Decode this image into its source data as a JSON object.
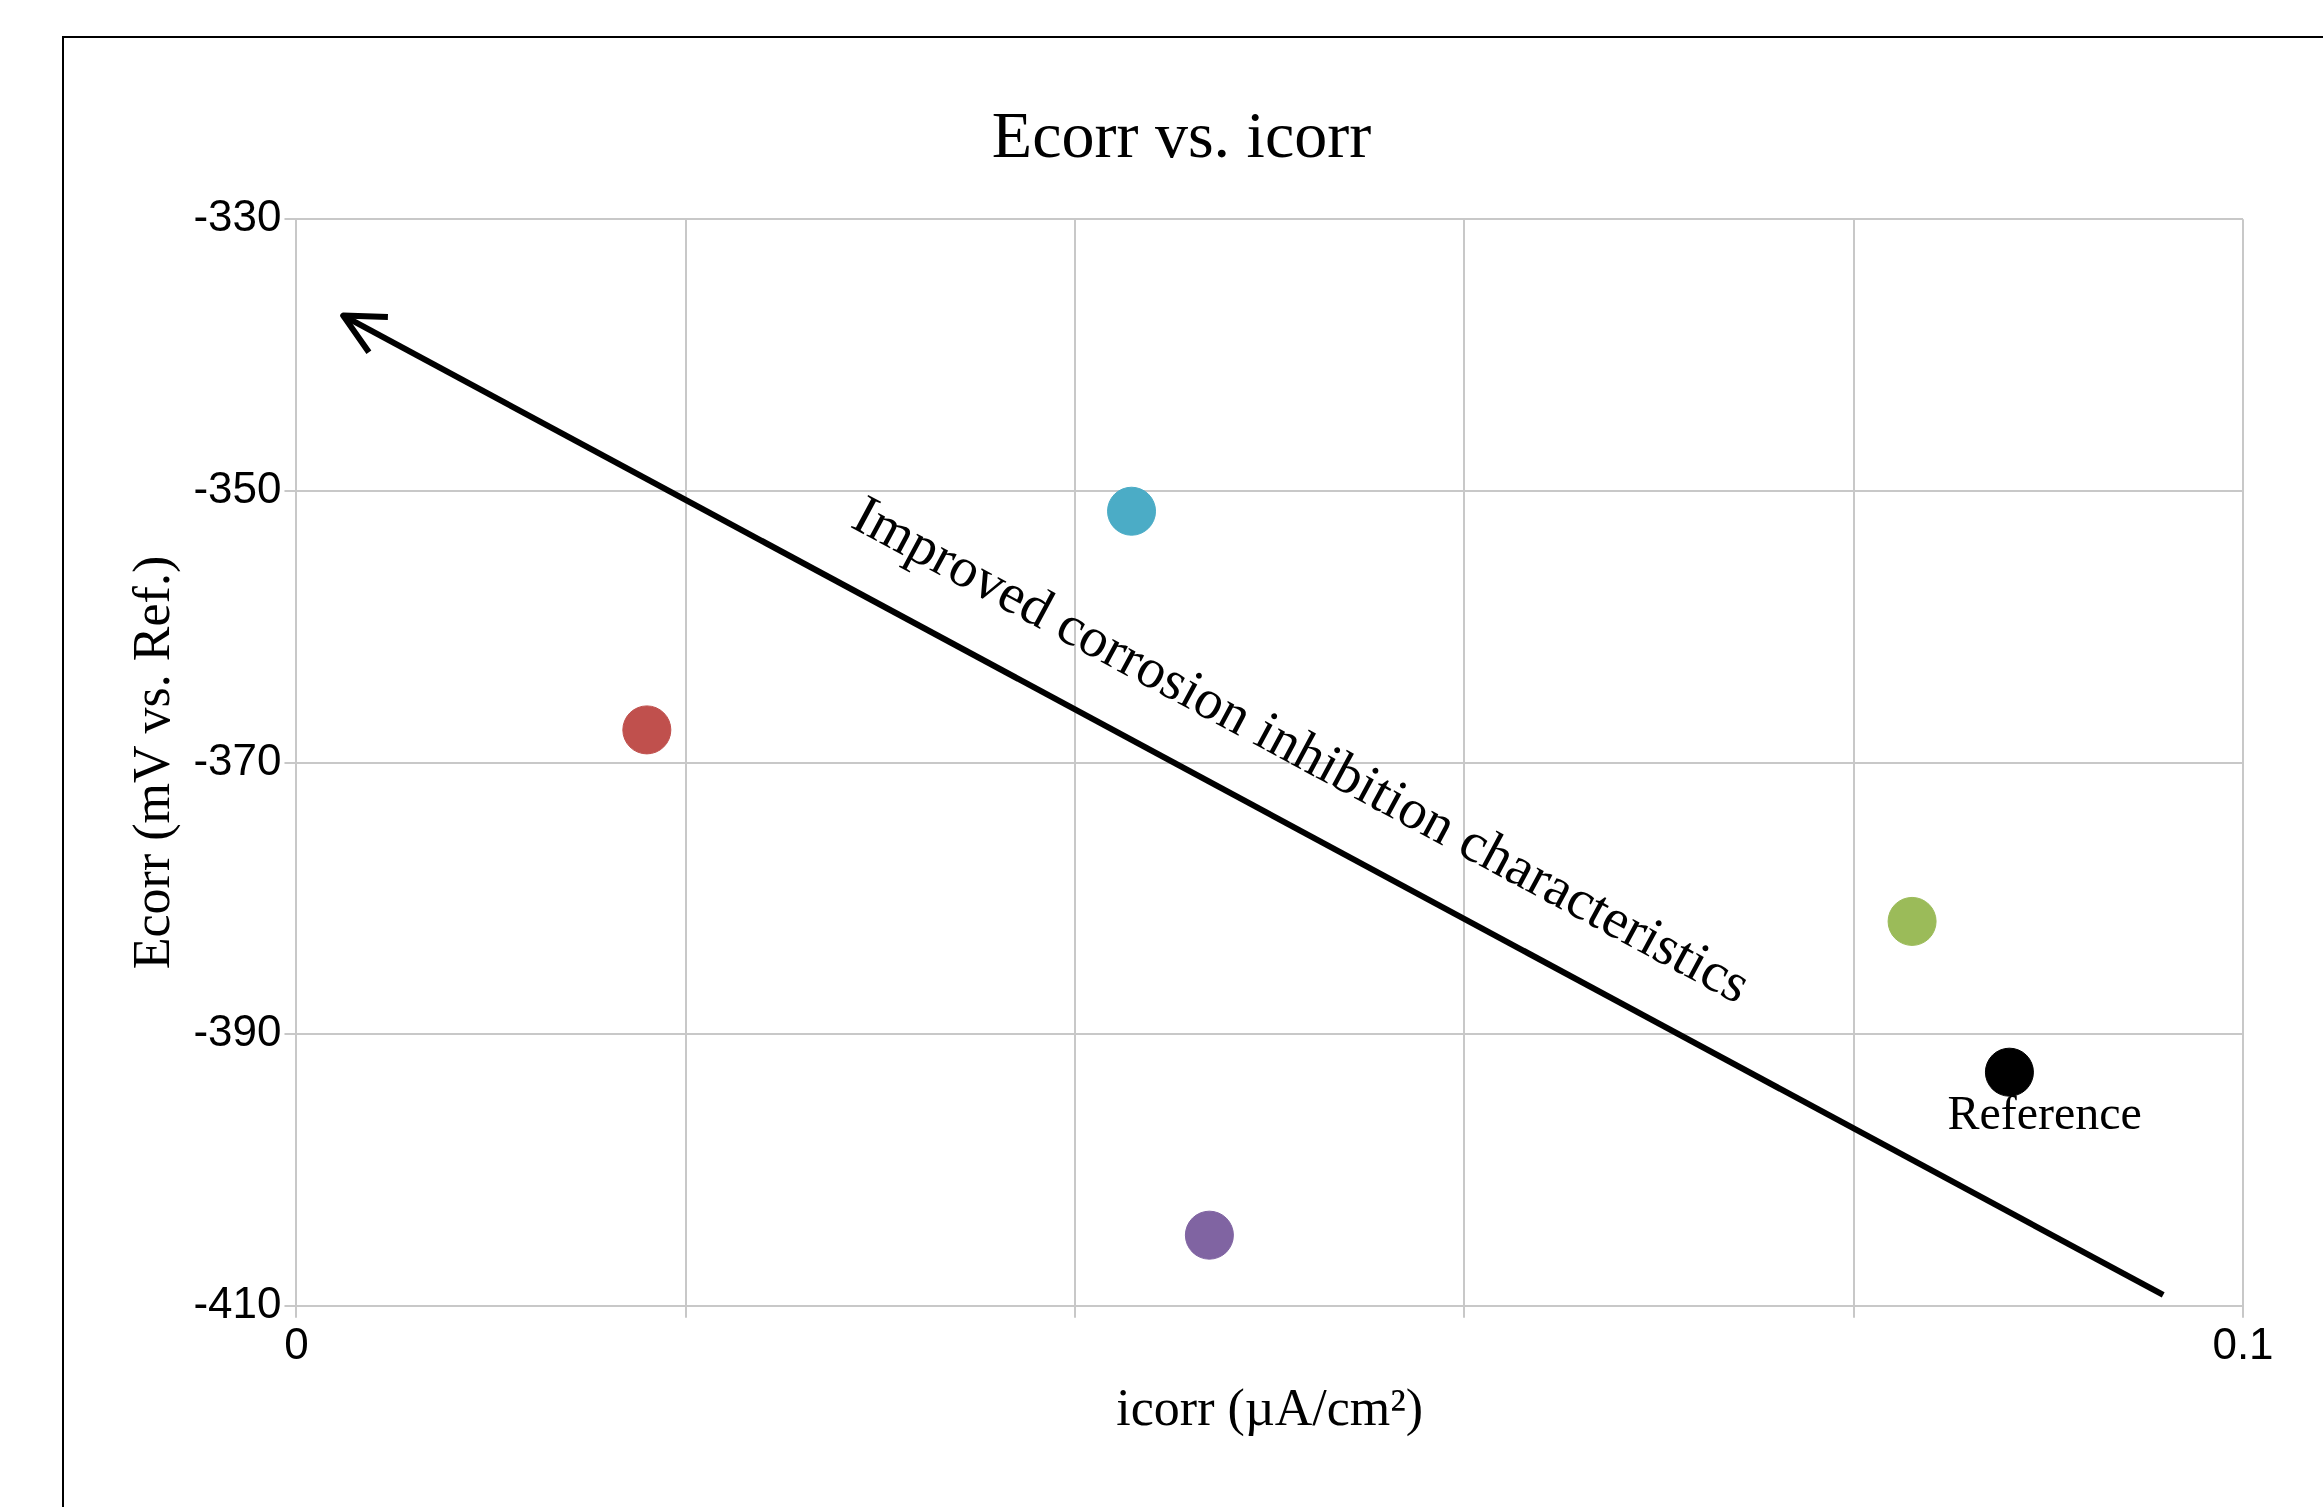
{
  "chart_data": {
    "type": "scatter",
    "title": "Ecorr vs. icorr",
    "xlabel": "icorr (µA/cm²)",
    "ylabel": "Ecorr (mV vs. Ref.)",
    "series": [
      {
        "type": "scatter",
        "x": [
          0.018,
          0.0429,
          0.0469,
          0.083,
          0.088
        ],
        "values": [
          -367.6,
          -351.5,
          -404.8,
          -381.7,
          -392.8
        ],
        "colors": [
          "#c0504d",
          "#4bacc6",
          "#8064a2",
          "#9bbb59",
          "#000000"
        ],
        "marker": "circle"
      },
      {
        "type": "line",
        "x": [
          0.0959,
          0.0024
        ],
        "values": [
          -409.2,
          -337.1
        ],
        "color": "#000000",
        "marker": "none",
        "line_style": "solid"
      }
    ],
    "xlim": [
      0,
      0.1
    ],
    "xticks": [
      0,
      {
        "value": 0.02,
        "label": null
      },
      {
        "value": 0.04,
        "label": null
      },
      {
        "value": 0.06,
        "label": null
      },
      {
        "value": 0.08,
        "label": null
      },
      0.1
    ],
    "ylim": [
      -410,
      -330
    ],
    "yticks": [
      -410,
      -390,
      -370,
      -350,
      -330
    ],
    "grid": true,
    "legend": false,
    "annotations": [
      "Improved corrosion inhibition characteristics",
      {
        "text": "Reference",
        "x": 0.088,
        "y": -392.8
      }
    ]
  }
}
